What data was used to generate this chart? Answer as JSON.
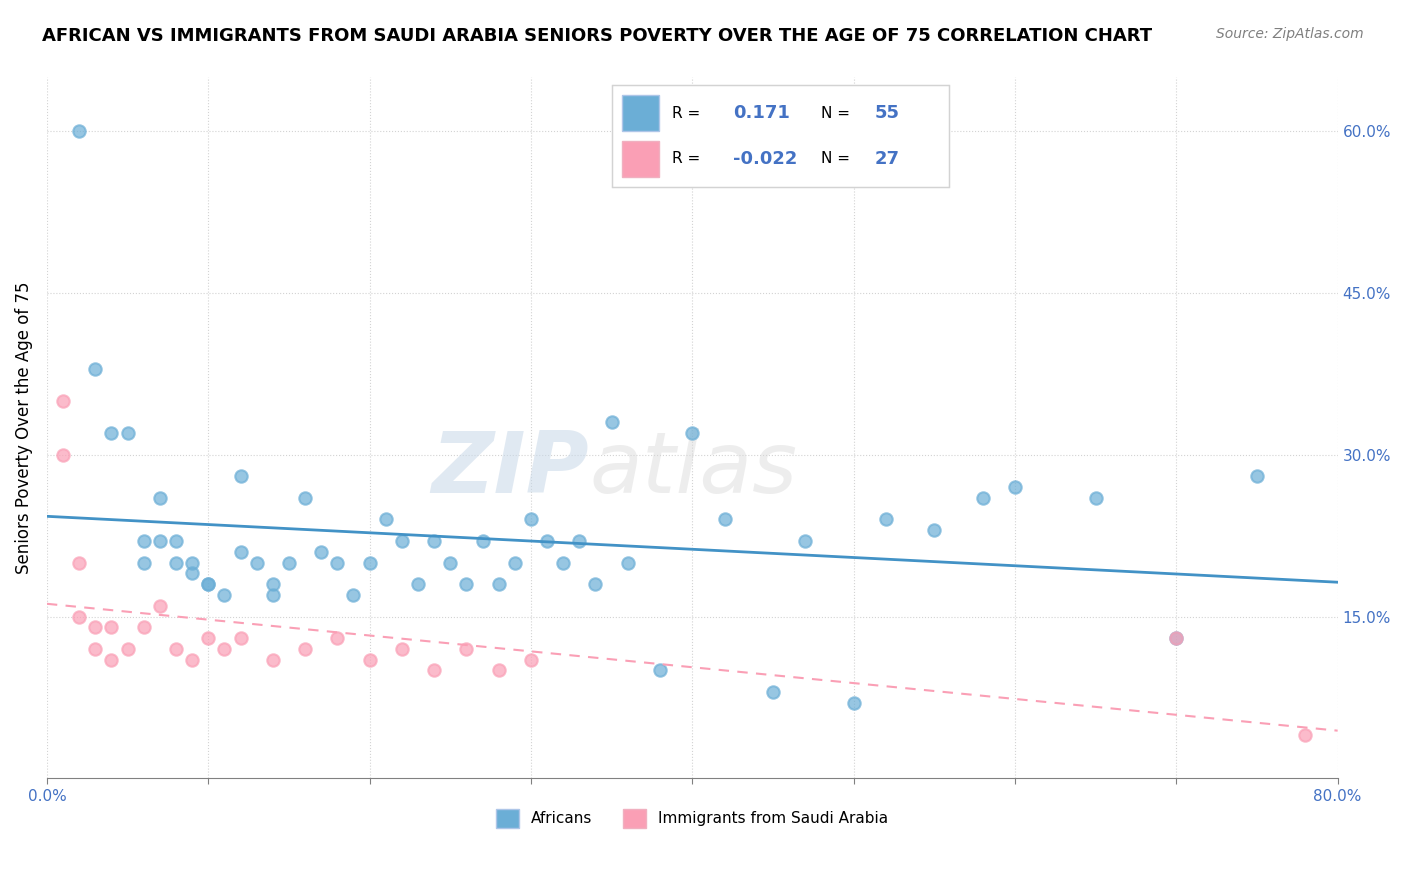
{
  "title": "AFRICAN VS IMMIGRANTS FROM SAUDI ARABIA SENIORS POVERTY OVER THE AGE OF 75 CORRELATION CHART",
  "source": "Source: ZipAtlas.com",
  "ylabel": "Seniors Poverty Over the Age of 75",
  "xlabel": "",
  "xlim": [
    0.0,
    0.8
  ],
  "ylim": [
    0.0,
    0.65
  ],
  "xticks": [
    0.0,
    0.1,
    0.2,
    0.3,
    0.4,
    0.5,
    0.6,
    0.7,
    0.8
  ],
  "ytick_labels_right": [
    "15.0%",
    "30.0%",
    "45.0%",
    "60.0%"
  ],
  "yticks_right": [
    0.15,
    0.3,
    0.45,
    0.6
  ],
  "legend_R1": "0.171",
  "legend_N1": "55",
  "legend_R2": "-0.022",
  "legend_N2": "27",
  "blue_color": "#6baed6",
  "pink_color": "#fa9fb5",
  "blue_line_color": "#4292c6",
  "pink_line_color": "#f768a1",
  "watermark_zip": "ZIP",
  "watermark_atlas": "atlas",
  "africans_x": [
    0.02,
    0.03,
    0.04,
    0.05,
    0.06,
    0.06,
    0.07,
    0.07,
    0.08,
    0.08,
    0.09,
    0.09,
    0.1,
    0.1,
    0.11,
    0.12,
    0.12,
    0.13,
    0.14,
    0.14,
    0.15,
    0.16,
    0.17,
    0.18,
    0.19,
    0.2,
    0.21,
    0.22,
    0.23,
    0.24,
    0.25,
    0.26,
    0.27,
    0.28,
    0.29,
    0.3,
    0.31,
    0.32,
    0.33,
    0.34,
    0.35,
    0.36,
    0.38,
    0.4,
    0.42,
    0.45,
    0.47,
    0.5,
    0.52,
    0.55,
    0.58,
    0.6,
    0.65,
    0.7,
    0.75
  ],
  "africans_y": [
    0.6,
    0.38,
    0.32,
    0.32,
    0.22,
    0.2,
    0.26,
    0.22,
    0.22,
    0.2,
    0.2,
    0.19,
    0.18,
    0.18,
    0.17,
    0.28,
    0.21,
    0.2,
    0.18,
    0.17,
    0.2,
    0.26,
    0.21,
    0.2,
    0.17,
    0.2,
    0.24,
    0.22,
    0.18,
    0.22,
    0.2,
    0.18,
    0.22,
    0.18,
    0.2,
    0.24,
    0.22,
    0.2,
    0.22,
    0.18,
    0.33,
    0.2,
    0.1,
    0.32,
    0.24,
    0.08,
    0.22,
    0.07,
    0.24,
    0.23,
    0.26,
    0.27,
    0.26,
    0.13,
    0.28
  ],
  "saudi_x": [
    0.01,
    0.01,
    0.02,
    0.02,
    0.03,
    0.03,
    0.04,
    0.04,
    0.05,
    0.06,
    0.07,
    0.08,
    0.09,
    0.1,
    0.11,
    0.12,
    0.14,
    0.16,
    0.18,
    0.2,
    0.22,
    0.24,
    0.26,
    0.28,
    0.3,
    0.7,
    0.78
  ],
  "saudi_y": [
    0.35,
    0.3,
    0.2,
    0.15,
    0.14,
    0.12,
    0.14,
    0.11,
    0.12,
    0.14,
    0.16,
    0.12,
    0.11,
    0.13,
    0.12,
    0.13,
    0.11,
    0.12,
    0.13,
    0.11,
    0.12,
    0.1,
    0.12,
    0.1,
    0.11,
    0.13,
    0.04
  ]
}
